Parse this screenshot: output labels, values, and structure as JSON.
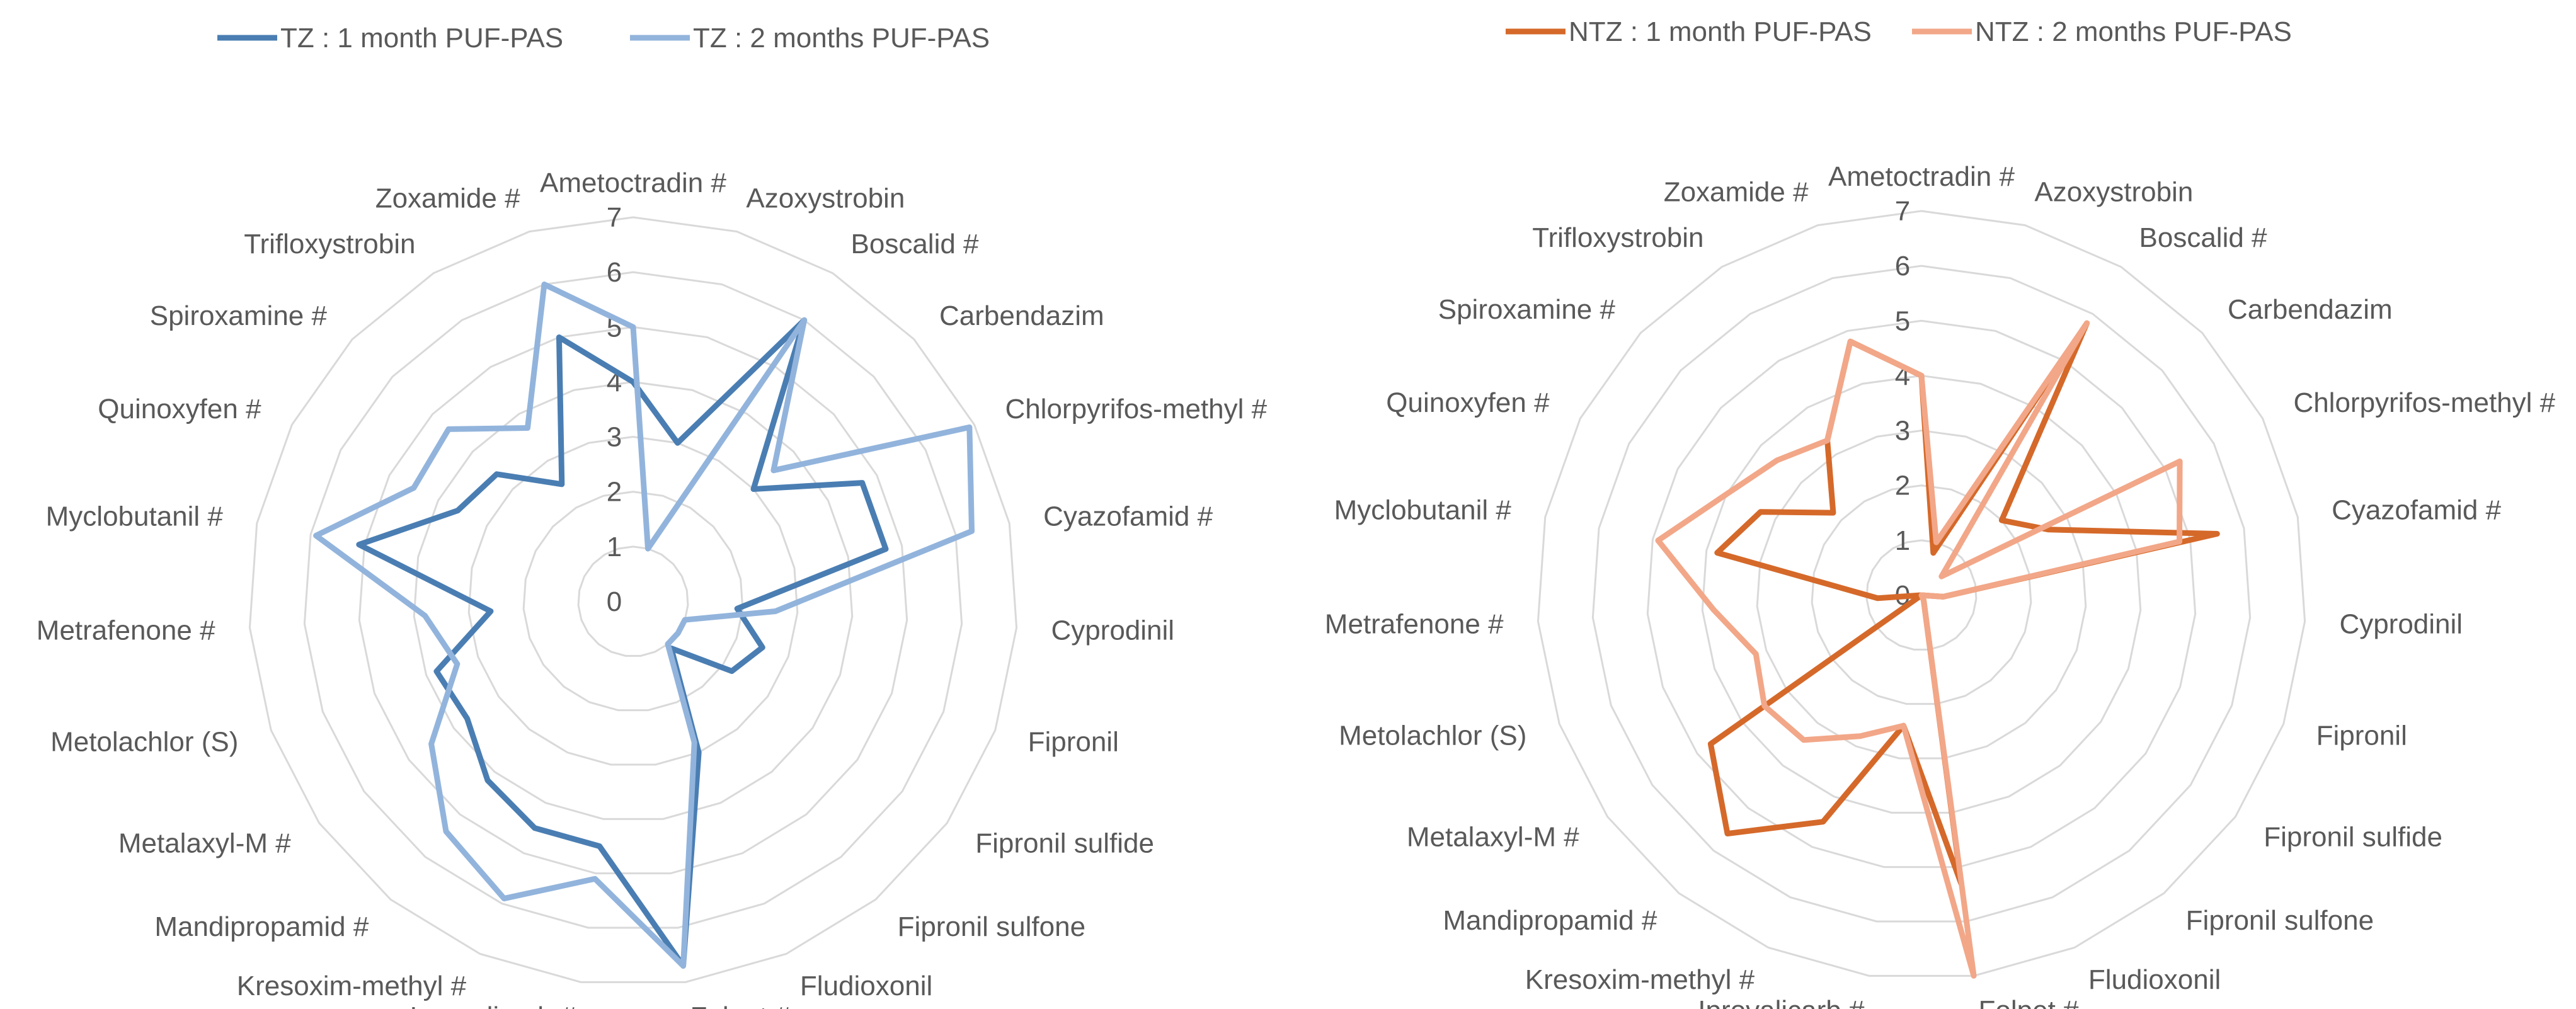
{
  "chart_data": [
    {
      "type": "radar",
      "title": "",
      "categories": [
        "Ametoctradin #",
        "Azoxystrobin",
        "Boscalid #",
        "Carbendazim",
        "Chlorpyrifos-methyl #",
        "Cyazofamid #",
        "Cyprodinil",
        "Fipronil",
        "Fipronil sulfide",
        "Fipronil sulfone",
        "Fludioxonil",
        "Folpet #",
        "Iprovalicarb #",
        "Kresoxim-methyl #",
        "Mandipropamid #",
        "Metalaxyl-M #",
        "Metolachlor (S)",
        "Metrafenone #",
        "Myclobutanil #",
        "Quinoxyfen #",
        "Spiroxamine #",
        "Trifloxystrobin",
        "Zoxamide #"
      ],
      "rlim": [
        0,
        7
      ],
      "ticks": [
        0,
        1,
        2,
        3,
        4,
        5,
        6,
        7
      ],
      "legend_position": "top",
      "series": [
        {
          "name": "TZ : 1 month PUF-PAS",
          "color": "#4a7eb3",
          "values": [
            4.0,
            3.0,
            6.0,
            3.0,
            4.7,
            4.7,
            1.9,
            2.5,
            2.2,
            1.1,
            3.0,
            6.7,
            4.5,
            4.5,
            4.2,
            3.7,
            3.8,
            2.6,
            5.1,
            3.6,
            3.4,
            2.5,
            5.0
          ]
        },
        {
          "name": "TZ : 2 months PUF-PAS",
          "color": "#92b4dc",
          "values": [
            5.0,
            1.0,
            6.0,
            3.5,
            6.9,
            6.3,
            2.6,
            1.0,
            1.0,
            1.0,
            2.8,
            6.7,
            5.1,
            5.9,
            5.4,
            4.5,
            3.4,
            3.8,
            5.9,
            4.5,
            4.6,
            3.7,
            6.0
          ]
        },
        {
          "name": "NTZ : 1 month PUF-PAS",
          "color": "#d5692a",
          "values": [
            4.0,
            0.8,
            5.8,
            2.0,
            2.6,
            5.5,
            0.4,
            0.0,
            0.0,
            0.0,
            0.1,
            5.3,
            2.4,
            4.5,
            5.6,
            4.7,
            0.0,
            0.8,
            3.8,
            3.3,
            2.2,
            3.3,
            4.8
          ]
        },
        {
          "name": "NTZ : 2 months PUF-PAS",
          "color": "#f2a788",
          "values": [
            4.0,
            1.0,
            5.8,
            0.5,
            5.3,
            4.8,
            0.4,
            0.0,
            0.0,
            0.0,
            0.1,
            7.0,
            2.4,
            2.8,
            3.4,
            3.5,
            3.2,
            3.8,
            4.9,
            4.0,
            3.6,
            3.3,
            4.8
          ]
        }
      ]
    }
  ]
}
